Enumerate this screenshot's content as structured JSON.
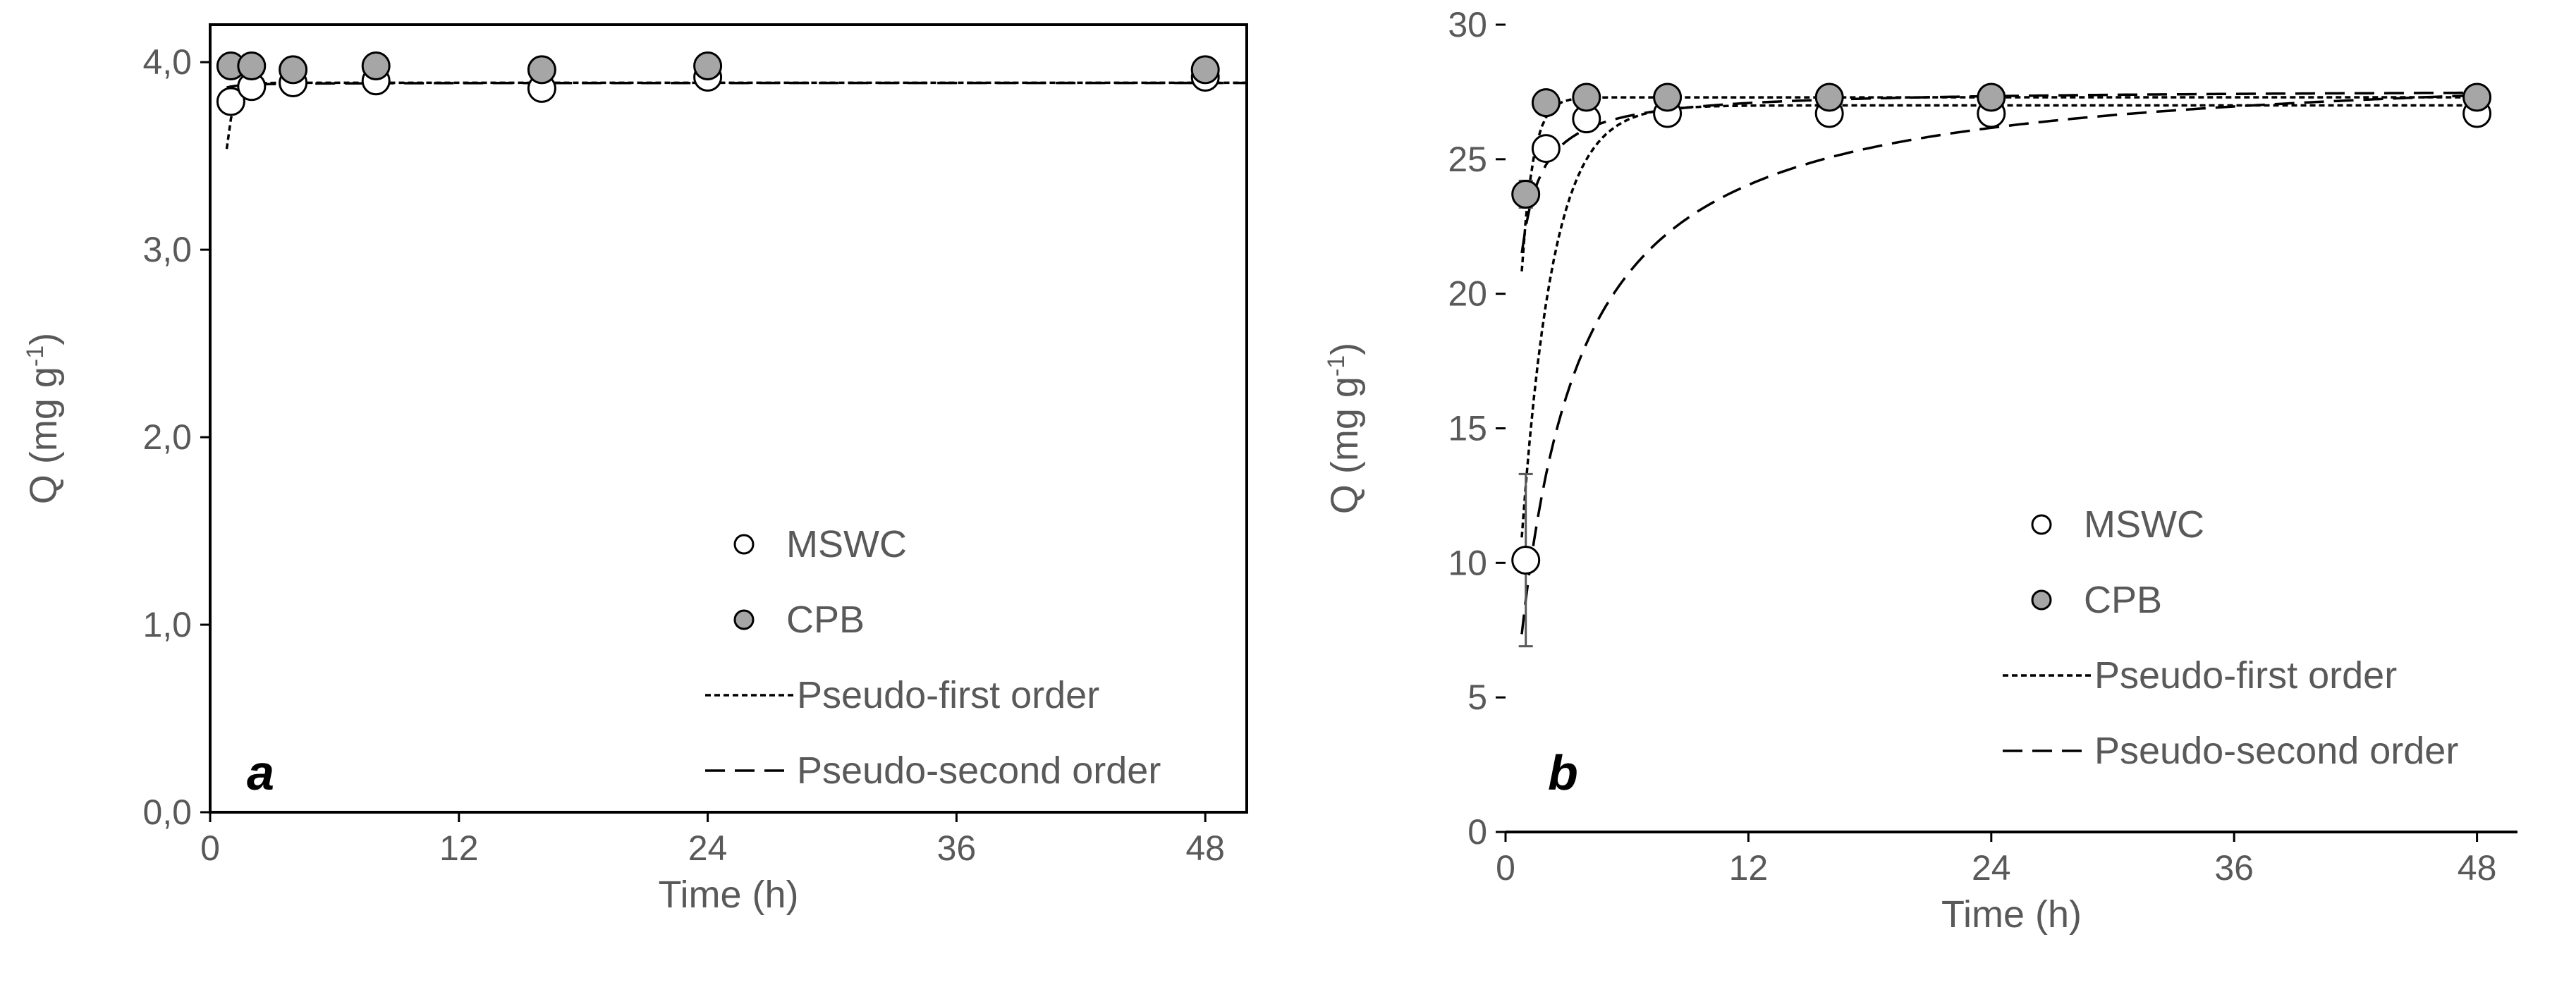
{
  "chart_data": [
    {
      "panel": "a",
      "type": "scatter",
      "xlabel": "Time (h)",
      "ylabel": "Q (mg g",
      "ylabel_sup": "-1",
      "ylabel_close": ")",
      "xlim": [
        0,
        50
      ],
      "ylim": [
        0,
        4.2
      ],
      "xticks": [
        0,
        12,
        24,
        36,
        48
      ],
      "yticks": [
        0,
        1,
        2,
        3,
        4
      ],
      "ytick_labels": [
        "0,0",
        "1,0",
        "2,0",
        "3,0",
        "4,0"
      ],
      "xtick_labels": [
        "0",
        "12",
        "24",
        "36",
        "48"
      ],
      "frame": true,
      "series": [
        {
          "name": "MSWC",
          "kind": "marker",
          "fill": "#ffffff",
          "x": [
            1,
            2,
            4,
            8,
            16,
            24,
            48
          ],
          "y": [
            3.79,
            3.87,
            3.89,
            3.9,
            3.86,
            3.92,
            3.92
          ]
        },
        {
          "name": "CPB",
          "kind": "marker",
          "fill": "#a6a6a6",
          "x": [
            1,
            2,
            4,
            8,
            16,
            24,
            48
          ],
          "y": [
            3.98,
            3.98,
            3.96,
            3.98,
            3.96,
            3.98,
            3.96
          ]
        },
        {
          "name": "Pseudo-first order",
          "kind": "line",
          "dash": "8,5",
          "model": "pfo",
          "qe": 3.89,
          "k": 3.0,
          "x0": 0.8,
          "x1": 50
        },
        {
          "name": "Pseudo-second order",
          "kind": "line",
          "dash": "28,14",
          "model": "pso",
          "qe": 3.89,
          "k": 50,
          "x0": 0.8,
          "x1": 50
        }
      ],
      "legend": {
        "position": "bottom-right",
        "items": [
          "MSWC",
          "CPB",
          "Pseudo-first order",
          "Pseudo-second order"
        ]
      }
    },
    {
      "panel": "b",
      "type": "scatter",
      "xlabel": "Time (h)",
      "ylabel": "Q (mg g",
      "ylabel_sup": "-1",
      "ylabel_close": ")",
      "xlim": [
        0,
        50
      ],
      "ylim": [
        0,
        30
      ],
      "xticks": [
        0,
        12,
        24,
        36,
        48
      ],
      "yticks": [
        0,
        5,
        10,
        15,
        20,
        25,
        30
      ],
      "ytick_labels": [
        "0",
        "5",
        "10",
        "15",
        "20",
        "25",
        "30"
      ],
      "xtick_labels": [
        "0",
        "12",
        "24",
        "36",
        "48"
      ],
      "frame": false,
      "series": [
        {
          "name": "MSWC",
          "kind": "marker",
          "fill": "#ffffff",
          "x": [
            1,
            2,
            4,
            8,
            16,
            24,
            48
          ],
          "y": [
            10.1,
            25.4,
            26.5,
            26.7,
            26.7,
            26.7,
            26.7
          ],
          "err": [
            3.2,
            0.3,
            0.3,
            0.2,
            0.2,
            0.2,
            0.2
          ]
        },
        {
          "name": "CPB",
          "kind": "marker",
          "fill": "#a6a6a6",
          "x": [
            1,
            2,
            4,
            8,
            16,
            24,
            48
          ],
          "y": [
            23.7,
            27.1,
            27.3,
            27.3,
            27.3,
            27.3,
            27.3
          ],
          "err": [
            0.5,
            0.2,
            0.2,
            0.2,
            0.2,
            0.2,
            0.2
          ]
        },
        {
          "name": "Pseudo-first order",
          "kind": "line",
          "dash": "8,5",
          "model": "pfo",
          "qe": 27.0,
          "k": 0.65,
          "x0": 0.8,
          "x1": 48.5
        },
        {
          "name": "Pseudo-first order",
          "kind": "line",
          "dash": "8,5",
          "model": "pfo",
          "qe": 27.3,
          "k": 1.8,
          "x0": 0.8,
          "x1": 48.5
        },
        {
          "name": "Pseudo-second order",
          "kind": "line",
          "dash": "28,14",
          "model": "pso",
          "qe": 28.7,
          "k": 0.015,
          "x0": 0.8,
          "x1": 48.5
        },
        {
          "name": "Pseudo-second order",
          "kind": "line",
          "dash": "28,14",
          "model": "pso",
          "qe": 27.6,
          "k": 0.16,
          "x0": 0.8,
          "x1": 48.5
        }
      ],
      "legend": {
        "position": "bottom-right",
        "items": [
          "MSWC",
          "CPB",
          "Pseudo-first order",
          "Pseudo-second order"
        ]
      }
    }
  ]
}
